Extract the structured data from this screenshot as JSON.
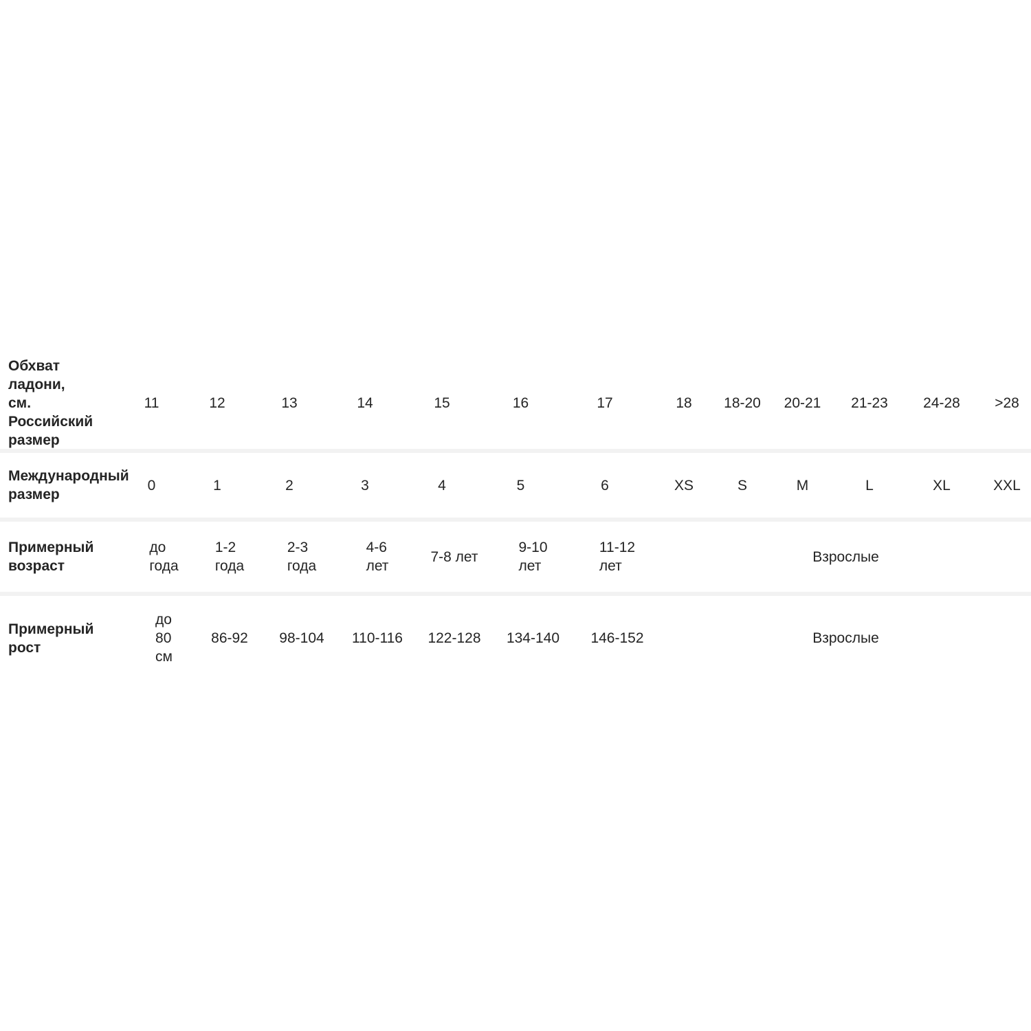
{
  "colors": {
    "background": "#ffffff",
    "separator": "#f2f2f2",
    "text": "#242424"
  },
  "table": {
    "rows": [
      {
        "label": "Обхват ладони,\nсм.\nРоссийский\nразмер",
        "cells": [
          "11",
          "12",
          "13",
          "14",
          "15",
          "16",
          "17",
          "18",
          "18-20",
          "20-21",
          "21-23",
          "24-28",
          ">28"
        ]
      },
      {
        "label": "Международный\nразмер",
        "cells": [
          "0",
          "1",
          "2",
          "3",
          "4",
          "5",
          "6",
          "XS",
          "S",
          "M",
          "L",
          "XL",
          "XXL"
        ]
      },
      {
        "label": "Примерный\nвозраст",
        "cells": [
          "до\nгода",
          "1-2\nгода",
          "2-3\nгода",
          "4-6\nлет",
          "7-8 лет",
          "9-10\nлет",
          "11-12\nлет"
        ],
        "adults": "Взрослые"
      },
      {
        "label": "Примерный рост",
        "cells": [
          "до\n80\nсм",
          "86-92",
          "98-104",
          "110-116",
          "122-128",
          "134-140",
          "146-152"
        ],
        "adults": "Взрослые"
      }
    ]
  }
}
